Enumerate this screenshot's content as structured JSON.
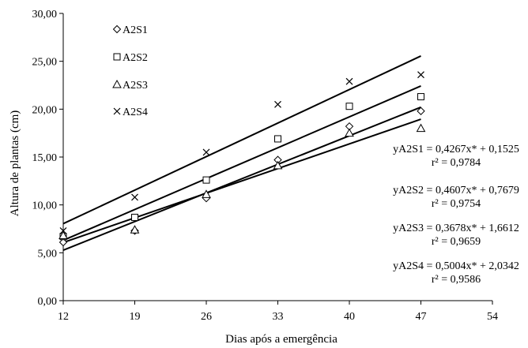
{
  "chart_data": {
    "type": "scatter",
    "title": "",
    "xlabel": "Dias após a emergência",
    "ylabel": "Altura de plantas (cm)",
    "xlim": [
      12,
      54
    ],
    "ylim": [
      0,
      30
    ],
    "x_ticks": [
      12,
      19,
      26,
      33,
      40,
      47,
      54
    ],
    "x_tick_labels": [
      "12",
      "19",
      "26",
      "33",
      "40",
      "47",
      "54"
    ],
    "y_ticks": [
      0,
      5,
      10,
      15,
      20,
      25,
      30
    ],
    "y_tick_labels": [
      "0,00",
      "5,00",
      "10,00",
      "15,00",
      "20,00",
      "25,00",
      "30,00"
    ],
    "grid": false,
    "legend_position": "top-left",
    "x": [
      12,
      19,
      26,
      33,
      40,
      47
    ],
    "series": [
      {
        "name": "A2S1",
        "marker": "diamond",
        "values": [
          6.1,
          7.3,
          10.7,
          14.7,
          18.2,
          19.8
        ],
        "trend": {
          "slope": 0.4267,
          "intercept": 0.1525
        },
        "equation": "yA2S1 = 0,4267x* + 0,1525",
        "r2": "r² = 0,9784"
      },
      {
        "name": "A2S2",
        "marker": "square",
        "values": [
          6.7,
          8.7,
          12.6,
          16.9,
          20.3,
          21.3
        ],
        "trend": {
          "slope": 0.4607,
          "intercept": 0.7679
        },
        "equation": "yA2S2 = 0,4607x* + 0,7679",
        "r2": "r² = 0,9754"
      },
      {
        "name": "A2S3",
        "marker": "triangle",
        "values": [
          6.8,
          7.4,
          11.1,
          14.1,
          17.5,
          18.0
        ],
        "trend": {
          "slope": 0.3678,
          "intercept": 1.6612
        },
        "equation": "yA2S3 = 0,3678x* + 1,6612",
        "r2": "r² = 0,9659"
      },
      {
        "name": "A2S4",
        "marker": "x",
        "values": [
          7.3,
          10.8,
          15.5,
          20.5,
          22.9,
          23.6
        ],
        "trend": {
          "slope": 0.5004,
          "intercept": 2.0342
        },
        "equation": "yA2S4 = 0,5004x* + 2,0342",
        "r2": "r² = 0,9586"
      }
    ]
  }
}
